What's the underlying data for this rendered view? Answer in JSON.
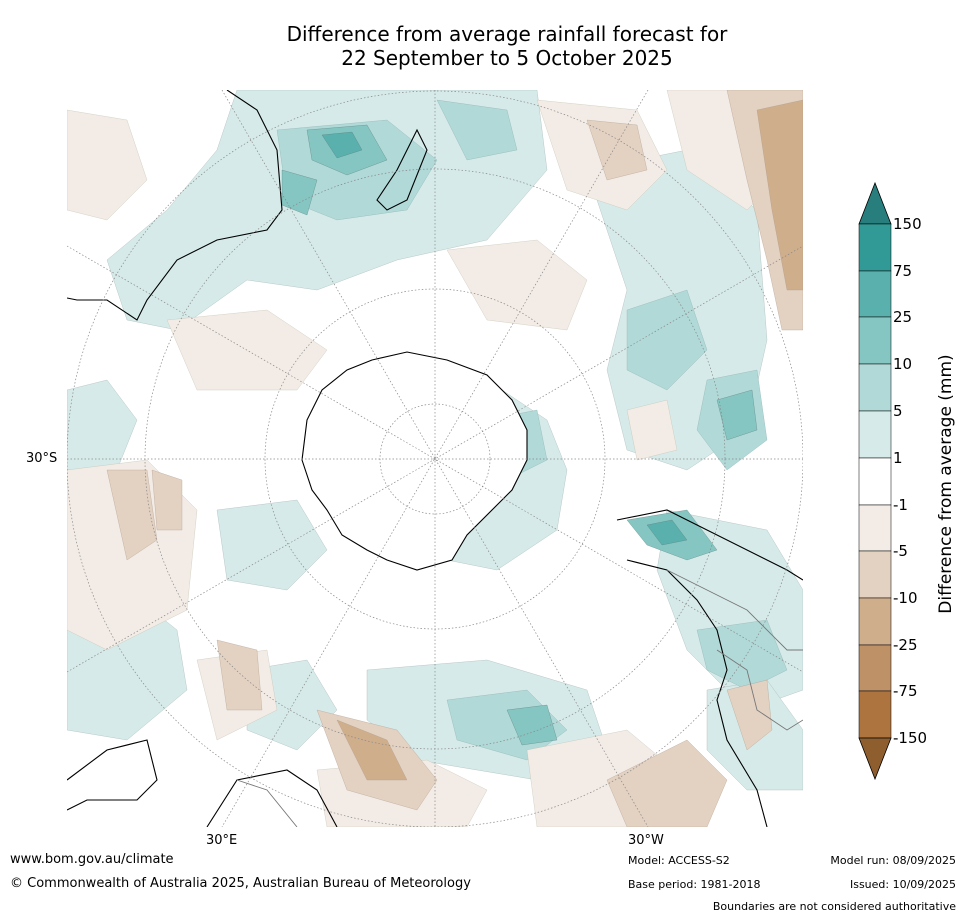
{
  "title": {
    "line1": "Difference from average rainfall forecast for",
    "line2": "22 September to 5 October 2025"
  },
  "map": {
    "projection": "south-polar-stereographic",
    "latitude_label": "30°S",
    "longitude_labels": [
      "30°E",
      "30°W"
    ]
  },
  "colorbar": {
    "title": "Difference from average (mm)",
    "ticks": [
      "150",
      "75",
      "25",
      "10",
      "5",
      "1",
      "-1",
      "-5",
      "-10",
      "-25",
      "-75",
      "-150"
    ],
    "colors": {
      "over_150": "#277e7c",
      "75_150": "#319a97",
      "25_75": "#5ab0ad",
      "10_25": "#86c6c2",
      "5_10": "#b0d9d7",
      "1_5": "#d6ebe9",
      "m1_1": "#ffffff",
      "m5_m1": "#f3ece6",
      "m10_m5": "#e3d1c2",
      "m25_m10": "#cfae8c",
      "m75_m25": "#bf9166",
      "m150_m75": "#ad7440",
      "under_m150": "#8e5e2f"
    }
  },
  "footer": {
    "website": "www.bom.gov.au/climate",
    "copyright": "© Commonwealth of Australia 2025, Australian Bureau of Meteorology",
    "model": "Model: ACCESS-S2",
    "base_period": "Base period: 1981-2018",
    "model_run": "Model run: 08/09/2025",
    "issued": "Issued: 10/09/2025",
    "disclaimer": "Boundaries are not considered authoritative"
  }
}
